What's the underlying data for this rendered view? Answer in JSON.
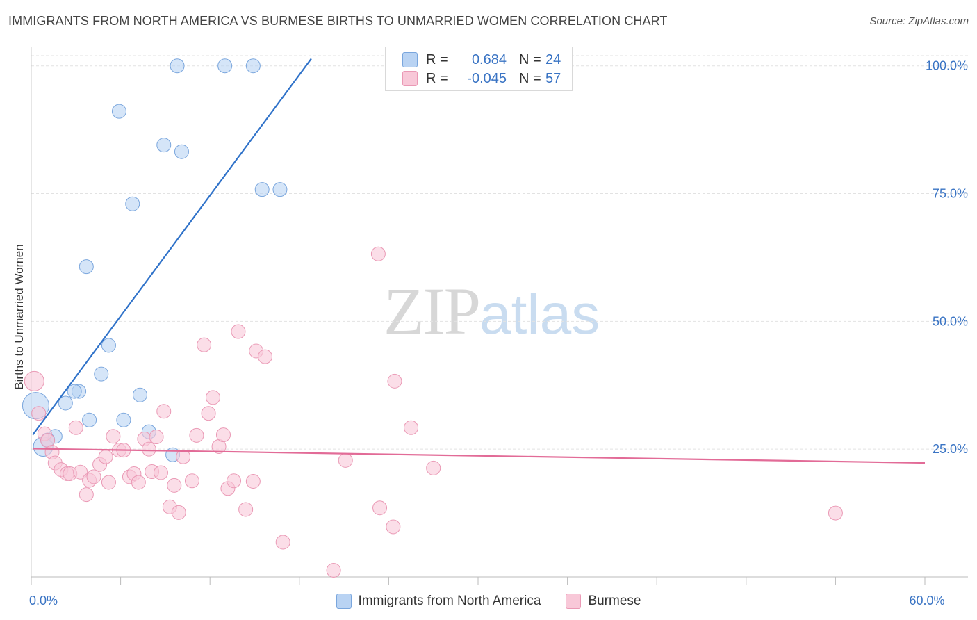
{
  "title": "IMMIGRANTS FROM NORTH AMERICA VS BURMESE BIRTHS TO UNMARRIED WOMEN CORRELATION CHART",
  "source": "Source: ZipAtlas.com",
  "watermark": {
    "zip": "ZIP",
    "atlas": "atlas"
  },
  "legend": {
    "r_key": "R =",
    "n_key": "N =",
    "blue": {
      "r": "0.684",
      "n": "24",
      "label": "Immigrants from North America"
    },
    "pink": {
      "r": "-0.045",
      "n": "57",
      "label": "Burmese"
    }
  },
  "colors": {
    "blue_fill": "#b9d3f3",
    "blue_stroke": "#7aa6dd",
    "blue_line": "#2f72c9",
    "pink_fill": "#f8c8d8",
    "pink_stroke": "#ea99b5",
    "pink_line": "#e26b97",
    "tick_label": "#3a74c4",
    "grid": "#e2e2e2"
  },
  "chart_data": {
    "type": "scatter",
    "title": "IMMIGRANTS FROM NORTH AMERICA VS BURMESE BIRTHS TO UNMARRIED WOMEN CORRELATION CHART",
    "xlabel": "",
    "ylabel": "Births to Unmarried Women",
    "xlim": [
      0,
      60
    ],
    "ylim": [
      0,
      102
    ],
    "x_tick_labels": [
      {
        "value": 0,
        "label": "0.0%"
      },
      {
        "value": 60,
        "label": "60.0%"
      }
    ],
    "y_ticks": [
      {
        "value": 25,
        "label": "25.0%"
      },
      {
        "value": 50,
        "label": "50.0%"
      },
      {
        "value": 75,
        "label": "75.0%"
      },
      {
        "value": 100,
        "label": "100.0%"
      }
    ],
    "series": [
      {
        "name": "Immigrants from North America",
        "color": "blue",
        "points": [
          [
            0.3,
            33.5,
            2
          ],
          [
            0.8,
            25.5,
            1
          ],
          [
            1.6,
            27.5,
            0
          ],
          [
            1.1,
            26.8,
            0
          ],
          [
            2.3,
            34.0,
            0
          ],
          [
            3.2,
            36.3,
            0
          ],
          [
            2.9,
            36.3,
            0
          ],
          [
            3.9,
            30.7,
            0
          ],
          [
            4.7,
            39.7,
            0
          ],
          [
            5.2,
            45.3,
            0
          ],
          [
            6.2,
            30.7,
            0
          ],
          [
            7.3,
            35.6,
            0
          ],
          [
            7.9,
            28.4,
            0
          ],
          [
            9.5,
            23.9,
            0
          ],
          [
            3.7,
            60.7,
            0
          ],
          [
            6.8,
            73.0,
            0
          ],
          [
            5.9,
            91.1,
            0
          ],
          [
            8.9,
            84.5,
            0
          ],
          [
            10.1,
            83.2,
            0
          ],
          [
            9.8,
            100.0,
            0
          ],
          [
            13.0,
            100.0,
            0
          ],
          [
            14.9,
            100.0,
            0
          ],
          [
            15.5,
            75.8,
            0
          ],
          [
            16.7,
            75.8,
            0
          ]
        ],
        "trend": {
          "x": [
            0.1,
            18.8
          ],
          "y": [
            27.8,
            101.4
          ]
        }
      },
      {
        "name": "Burmese",
        "color": "pink",
        "points": [
          [
            0.2,
            38.3,
            1
          ],
          [
            0.5,
            32.0,
            0
          ],
          [
            0.9,
            28.0,
            0
          ],
          [
            1.1,
            26.7,
            0
          ],
          [
            1.4,
            24.4,
            0
          ],
          [
            1.6,
            22.3,
            0
          ],
          [
            2.0,
            21.0,
            0
          ],
          [
            2.4,
            20.2,
            0
          ],
          [
            2.6,
            20.2,
            0
          ],
          [
            3.0,
            29.2,
            0
          ],
          [
            3.3,
            20.5,
            0
          ],
          [
            3.7,
            16.1,
            0
          ],
          [
            3.9,
            18.9,
            0
          ],
          [
            4.2,
            19.6,
            0
          ],
          [
            4.6,
            22.0,
            0
          ],
          [
            5.0,
            23.5,
            0
          ],
          [
            5.2,
            18.5,
            0
          ],
          [
            5.5,
            27.5,
            0
          ],
          [
            5.9,
            24.8,
            0
          ],
          [
            6.2,
            24.8,
            0
          ],
          [
            6.6,
            19.6,
            0
          ],
          [
            6.9,
            20.2,
            0
          ],
          [
            7.2,
            18.5,
            0
          ],
          [
            7.6,
            27.0,
            0
          ],
          [
            7.9,
            25.0,
            0
          ],
          [
            8.1,
            20.6,
            0
          ],
          [
            8.4,
            27.4,
            0
          ],
          [
            8.7,
            20.4,
            0
          ],
          [
            8.9,
            32.4,
            0
          ],
          [
            9.3,
            13.7,
            0
          ],
          [
            9.6,
            17.9,
            0
          ],
          [
            9.9,
            12.6,
            0
          ],
          [
            10.2,
            23.5,
            0
          ],
          [
            10.8,
            18.8,
            0
          ],
          [
            11.1,
            27.7,
            0
          ],
          [
            11.6,
            45.4,
            0
          ],
          [
            11.9,
            32.0,
            0
          ],
          [
            12.2,
            35.1,
            0
          ],
          [
            12.6,
            25.5,
            0
          ],
          [
            12.9,
            27.8,
            0
          ],
          [
            13.2,
            17.3,
            0
          ],
          [
            13.6,
            18.8,
            0
          ],
          [
            13.9,
            48.0,
            0
          ],
          [
            14.4,
            13.2,
            0
          ],
          [
            14.9,
            18.7,
            0
          ],
          [
            15.1,
            44.2,
            0
          ],
          [
            15.7,
            43.1,
            0
          ],
          [
            16.9,
            6.8,
            0
          ],
          [
            20.3,
            1.3,
            0
          ],
          [
            21.1,
            22.8,
            0
          ],
          [
            23.4,
            13.5,
            0
          ],
          [
            23.3,
            63.2,
            0
          ],
          [
            24.4,
            38.3,
            0
          ],
          [
            24.3,
            9.8,
            0
          ],
          [
            25.5,
            29.2,
            0
          ],
          [
            27.0,
            21.3,
            0
          ],
          [
            54.0,
            12.5,
            0
          ]
        ],
        "trend": {
          "x": [
            0.1,
            60.0
          ],
          "y": [
            25.1,
            22.3
          ]
        }
      }
    ]
  }
}
